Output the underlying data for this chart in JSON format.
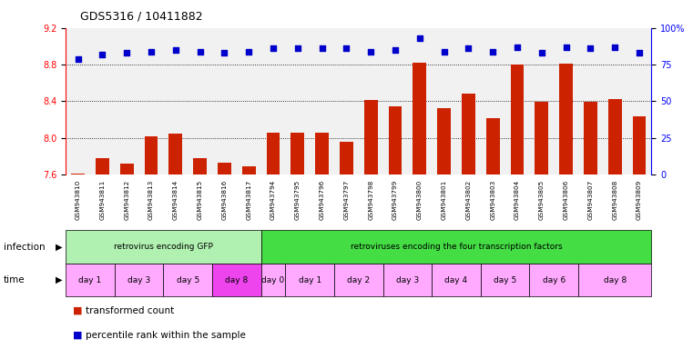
{
  "title": "GDS5316 / 10411882",
  "samples": [
    "GSM943810",
    "GSM943811",
    "GSM943812",
    "GSM943813",
    "GSM943814",
    "GSM943815",
    "GSM943816",
    "GSM943817",
    "GSM943794",
    "GSM943795",
    "GSM943796",
    "GSM943797",
    "GSM943798",
    "GSM943799",
    "GSM943800",
    "GSM943801",
    "GSM943802",
    "GSM943803",
    "GSM943804",
    "GSM943805",
    "GSM943806",
    "GSM943807",
    "GSM943808",
    "GSM943809"
  ],
  "red_values": [
    7.61,
    7.78,
    7.72,
    8.02,
    8.05,
    7.78,
    7.73,
    7.69,
    8.06,
    8.06,
    8.06,
    7.96,
    8.41,
    8.34,
    8.82,
    8.32,
    8.48,
    8.22,
    8.8,
    8.39,
    8.81,
    8.39,
    8.42,
    8.23
  ],
  "blue_pct": [
    79,
    82,
    83,
    84,
    85,
    84,
    83,
    84,
    86,
    86,
    86,
    86,
    84,
    85,
    93,
    84,
    86,
    84,
    87,
    83,
    87,
    86,
    87,
    83
  ],
  "ylim_left": [
    7.6,
    9.2
  ],
  "yticks_left": [
    7.6,
    8.0,
    8.4,
    8.8,
    9.2
  ],
  "ylim_right": [
    0,
    100
  ],
  "yticks_right": [
    0,
    25,
    50,
    75,
    100
  ],
  "ytick_labels_right": [
    "0",
    "25",
    "50",
    "75",
    "100%"
  ],
  "bar_color": "#cc2200",
  "dot_color": "#0000cc",
  "infection_groups": [
    {
      "label": "retrovirus encoding GFP",
      "start": 0,
      "end": 8,
      "color": "#b0f0b0"
    },
    {
      "label": "retroviruses encoding the four transcription factors",
      "start": 8,
      "end": 24,
      "color": "#44dd44"
    }
  ],
  "time_groups": [
    {
      "label": "day 1",
      "start": 0,
      "end": 2,
      "color": "#ffaaff"
    },
    {
      "label": "day 3",
      "start": 2,
      "end": 4,
      "color": "#ffaaff"
    },
    {
      "label": "day 5",
      "start": 4,
      "end": 6,
      "color": "#ffaaff"
    },
    {
      "label": "day 8",
      "start": 6,
      "end": 8,
      "color": "#ee44ee"
    },
    {
      "label": "day 0",
      "start": 8,
      "end": 9,
      "color": "#ffaaff"
    },
    {
      "label": "day 1",
      "start": 9,
      "end": 11,
      "color": "#ffaaff"
    },
    {
      "label": "day 2",
      "start": 11,
      "end": 13,
      "color": "#ffaaff"
    },
    {
      "label": "day 3",
      "start": 13,
      "end": 15,
      "color": "#ffaaff"
    },
    {
      "label": "day 4",
      "start": 15,
      "end": 17,
      "color": "#ffaaff"
    },
    {
      "label": "day 5",
      "start": 17,
      "end": 19,
      "color": "#ffaaff"
    },
    {
      "label": "day 6",
      "start": 19,
      "end": 21,
      "color": "#ffaaff"
    },
    {
      "label": "day 8",
      "start": 21,
      "end": 24,
      "color": "#ffaaff"
    }
  ],
  "dotted_line_values": [
    8.0,
    8.4,
    8.8
  ],
  "background_color": "#ffffff",
  "col_bg_color": "#d8d8d8"
}
